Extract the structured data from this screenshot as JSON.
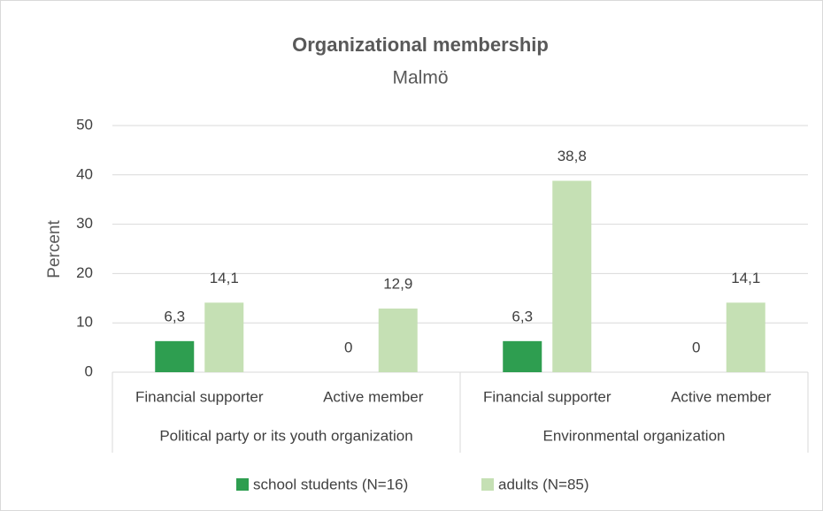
{
  "chart_data": {
    "type": "bar",
    "title": "Organizational membership",
    "subtitle": "Malmö",
    "ylabel": "Percent",
    "categories": [
      "Financial supporter",
      "Active member",
      "Financial supporter",
      "Active member"
    ],
    "groups": [
      "Political party or its youth organization",
      "Environmental organization"
    ],
    "series": [
      {
        "name": "school students (N=16)",
        "color": "#2e9e50",
        "values": [
          6.3,
          0,
          6.3,
          0
        ],
        "value_labels": [
          "6,3",
          "0",
          "6,3",
          "0"
        ]
      },
      {
        "name": "adults (N=85)",
        "color": "#c5e0b4",
        "values": [
          14.1,
          12.9,
          38.8,
          14.1
        ],
        "value_labels": [
          "14,1",
          "12,9",
          "38,8",
          "14,1"
        ]
      }
    ],
    "ylim": [
      0,
      50
    ],
    "yticks": [
      0,
      10,
      20,
      30,
      40,
      50
    ],
    "grid": true,
    "legend": "bottom"
  }
}
